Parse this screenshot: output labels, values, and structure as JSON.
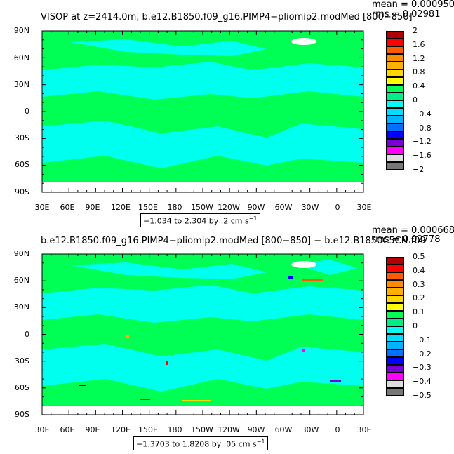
{
  "panels": [
    {
      "title": "VISOP at z=2414.0m, b.e12.B1850.f09_g16.PIMP4−pliomip2.modMed [800−850]",
      "mean_text": "mean = 0.0009509",
      "rms_text": "rms = 0.02981",
      "range_text": "−1.034 to 2.304 by .2 cm s",
      "range_unit_exp": "−1",
      "colorbar": {
        "labels": [
          "2",
          "1.6",
          "1.2",
          "0.8",
          "0.4",
          "0",
          "−0.4",
          "−0.8",
          "−1.2",
          "−1.6",
          "−2"
        ],
        "colors": [
          "#b00000",
          "#ff0000",
          "#ff5a00",
          "#ff8c00",
          "#ffb000",
          "#ffd700",
          "#ffff00",
          "#00ff55",
          "#00ee88",
          "#00ffee",
          "#00ddff",
          "#00b4ff",
          "#0070ff",
          "#0000ff",
          "#7a00d8",
          "#ff00ff",
          "#dddddd",
          "#777777"
        ]
      }
    },
    {
      "title": "b.e12.B1850.f09_g16.PIMP4−pliomip2.modMed [800−850] − b.e12.B1850C5CN.f09",
      "mean_text": "mean = 0.0006683",
      "rms_text": "rms = 0.02778",
      "range_text": "−1.3703 to 1.8208 by .05 cm s",
      "range_unit_exp": "−1",
      "colorbar": {
        "labels": [
          "0.5",
          "0.4",
          "0.3",
          "0.2",
          "0.1",
          "0",
          "−0.1",
          "−0.2",
          "−0.3",
          "−0.4",
          "−0.5"
        ],
        "colors": [
          "#b00000",
          "#ff0000",
          "#ff5a00",
          "#ff8c00",
          "#ffb000",
          "#ffd700",
          "#ffff00",
          "#00ff55",
          "#00ee88",
          "#00ffee",
          "#00ddff",
          "#00b4ff",
          "#0070ff",
          "#0000ff",
          "#7a00d8",
          "#ff00ff",
          "#dddddd",
          "#777777"
        ]
      }
    }
  ],
  "lat_labels": [
    "90N",
    "60N",
    "30N",
    "0",
    "30S",
    "60S",
    "90S"
  ],
  "lon_labels": [
    "30E",
    "60E",
    "90E",
    "120E",
    "150E",
    "180",
    "150W",
    "120W",
    "90W",
    "60W",
    "30W",
    "0",
    "30E"
  ],
  "map_colors": {
    "land": "#00ff55",
    "ocean_light": "#00ffee",
    "no_data": "#ffffff"
  }
}
